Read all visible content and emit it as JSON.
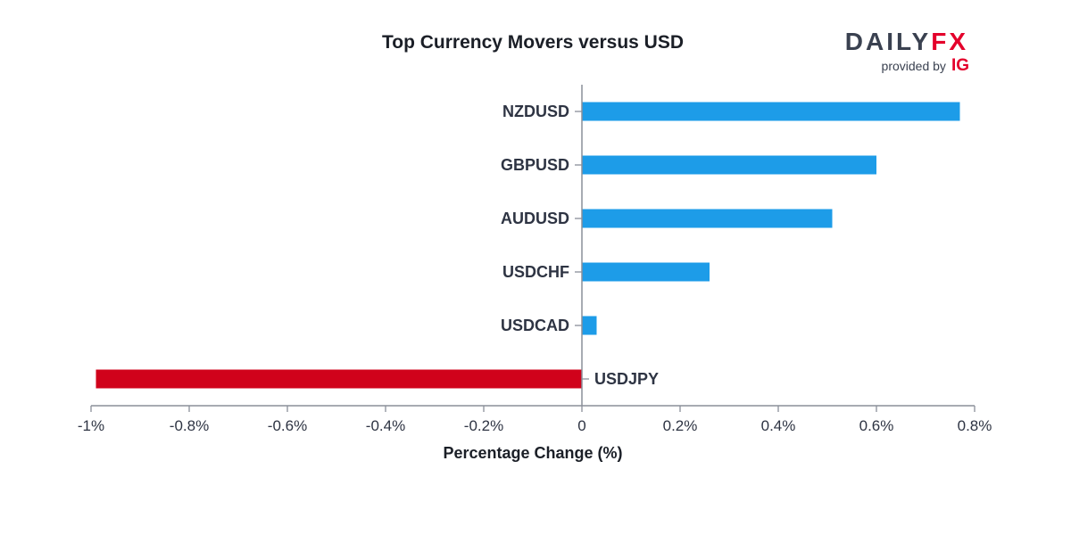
{
  "brand": {
    "name_part1": "DAILY",
    "name_part2": "FX",
    "provided_by": "provided by",
    "partner": "IG",
    "colors": {
      "dark": "#3a4150",
      "accent": "#e4002b"
    }
  },
  "colors": {
    "positive": "#1d9ce8",
    "negative": "#d0021b",
    "axis": "#8a8f99"
  },
  "chart_data": {
    "type": "bar",
    "orientation": "horizontal",
    "title": "Top Currency Movers versus USD",
    "xlabel": "Percentage Change (%)",
    "ylabel": "",
    "xlim": [
      -1,
      0.8
    ],
    "categories": [
      "NZDUSD",
      "GBPUSD",
      "AUDUSD",
      "USDCHF",
      "USDCAD",
      "USDJPY"
    ],
    "values": [
      0.77,
      0.6,
      0.51,
      0.26,
      0.03,
      -0.99
    ],
    "ticks": [
      -1,
      -0.8,
      -0.6,
      -0.4,
      -0.2,
      0,
      0.2,
      0.4,
      0.6,
      0.8
    ],
    "tick_labels": [
      "-1%",
      "-0.8%",
      "-0.6%",
      "-0.4%",
      "-0.2%",
      "0",
      "0.2%",
      "0.4%",
      "0.6%",
      "0.8%"
    ],
    "grid": false,
    "legend": "none"
  }
}
